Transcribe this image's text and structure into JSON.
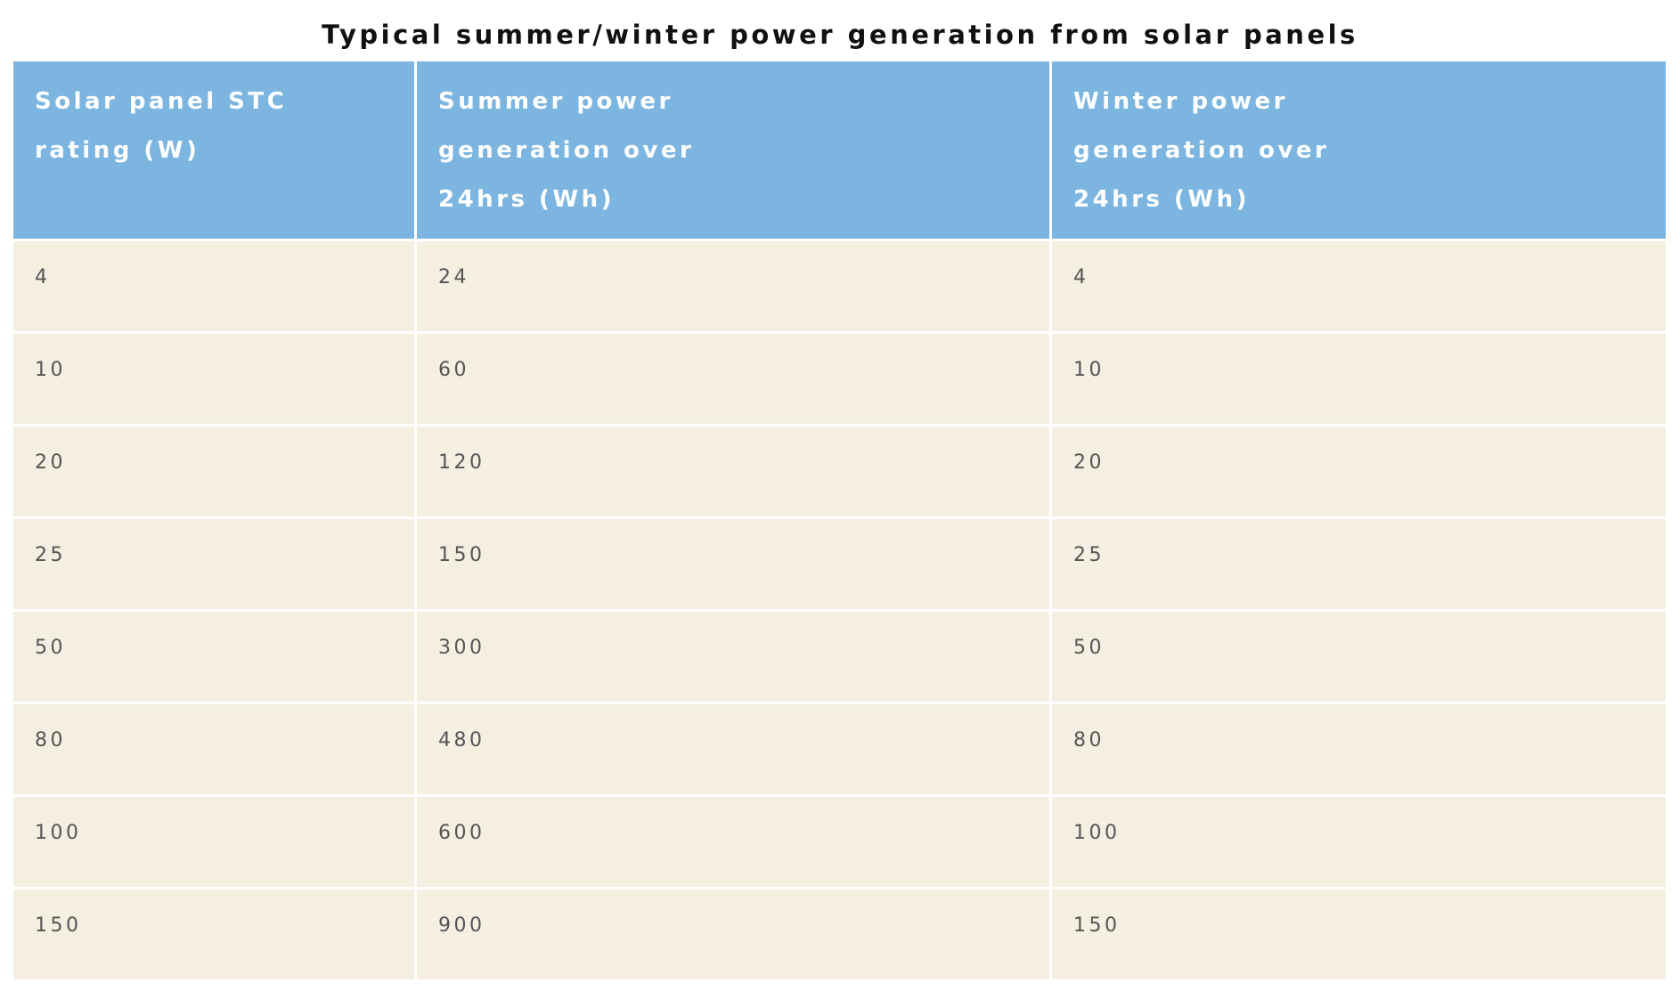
{
  "title": "Typical summer/winter power generation from solar panels",
  "table": {
    "header": [
      "Solar panel STC rating (W)",
      "Summer power generation over 24hrs (Wh)",
      "Winter power generation over 24hrs (Wh)"
    ],
    "rows": [
      [
        4,
        24,
        4
      ],
      [
        10,
        60,
        10
      ],
      [
        20,
        120,
        20
      ],
      [
        25,
        150,
        25
      ],
      [
        50,
        300,
        50
      ],
      [
        80,
        480,
        80
      ],
      [
        100,
        600,
        100
      ],
      [
        150,
        900,
        150
      ]
    ]
  }
}
